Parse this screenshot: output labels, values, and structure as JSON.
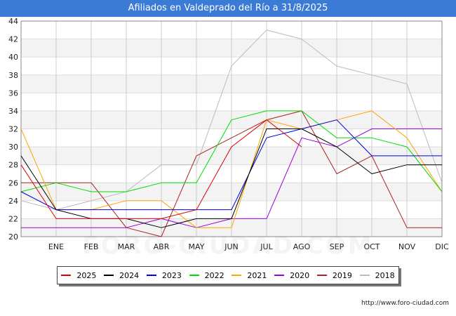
{
  "header": {
    "title": "Afiliados en Valdeprado del Río a 31/8/2025"
  },
  "watermark": "FORO-CIUDAD.COM",
  "footer": {
    "url": "http://www.foro-ciudad.com"
  },
  "chart_data": {
    "type": "line",
    "title": "Afiliados en Valdeprado del Río a 31/8/2025",
    "xlabel": "",
    "ylabel": "",
    "categories": [
      "",
      "ENE",
      "FEB",
      "MAR",
      "ABR",
      "MAY",
      "JUN",
      "JUL",
      "AGO",
      "SEP",
      "OCT",
      "NOV",
      "DIC"
    ],
    "ylim": [
      20,
      44
    ],
    "yticks": [
      20,
      22,
      24,
      26,
      28,
      30,
      32,
      34,
      36,
      38,
      40,
      42,
      44
    ],
    "grid": true,
    "legend_position": "bottom",
    "series": [
      {
        "name": "2025",
        "color": "#dd0000",
        "values": [
          28,
          22,
          22,
          22,
          22,
          23,
          30,
          33,
          30,
          null,
          null,
          null,
          null
        ]
      },
      {
        "name": "2024",
        "color": "#000000",
        "values": [
          29,
          23,
          22,
          22,
          21,
          22,
          22,
          32,
          32,
          30,
          27,
          28,
          28
        ]
      },
      {
        "name": "2023",
        "color": "#0000dd",
        "values": [
          25,
          23,
          23,
          23,
          23,
          23,
          23,
          31,
          32,
          33,
          29,
          29,
          29
        ]
      },
      {
        "name": "2022",
        "color": "#00dd00",
        "values": [
          25,
          26,
          25,
          25,
          26,
          26,
          33,
          34,
          34,
          31,
          31,
          30,
          25
        ]
      },
      {
        "name": "2021",
        "color": "#ffa500",
        "values": [
          32,
          23,
          23,
          24,
          24,
          21,
          21,
          33,
          32,
          33,
          34,
          31,
          25
        ]
      },
      {
        "name": "2020",
        "color": "#9900dd",
        "values": [
          21,
          21,
          21,
          21,
          22,
          21,
          22,
          22,
          31,
          30,
          32,
          32,
          32
        ]
      },
      {
        "name": "2019",
        "color": "#aa2222",
        "values": [
          26,
          26,
          26,
          21,
          20,
          29,
          31,
          33,
          34,
          27,
          29,
          21,
          21
        ]
      },
      {
        "name": "2018",
        "color": "#bbbbbb",
        "values": [
          24,
          23,
          24,
          25,
          28,
          28,
          39,
          43,
          42,
          39,
          38,
          37,
          26
        ]
      }
    ]
  }
}
